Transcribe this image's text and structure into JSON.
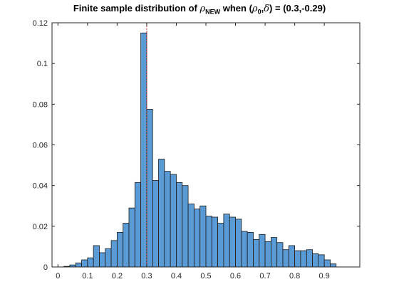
{
  "title": {
    "prefix": "Finite sample distribution of ",
    "rho": "ρ",
    "rho_sub": "NEW",
    "middle": " when (",
    "rho0": "ρ",
    "rho0_sub": "0",
    "comma": ",",
    "delta": "δ",
    "suffix": ") = (0.3,-0.29)"
  },
  "chart_data": {
    "type": "bar",
    "subtype": "histogram",
    "xlim": [
      -0.02,
      1.02
    ],
    "ylim": [
      0,
      0.12
    ],
    "xticks": [
      0,
      0.1,
      0.2,
      0.3,
      0.4,
      0.5,
      0.6,
      0.7,
      0.8,
      0.9
    ],
    "yticks": [
      0,
      0.02,
      0.04,
      0.06,
      0.08,
      0.1,
      0.12
    ],
    "xtick_labels": [
      "0",
      "0.1",
      "0.2",
      "0.3",
      "0.4",
      "0.5",
      "0.6",
      "0.7",
      "0.8",
      "0.9"
    ],
    "ytick_labels": [
      "0",
      "0.02",
      "0.04",
      "0.06",
      "0.08",
      "0.1",
      "0.12"
    ],
    "bin_width": 0.02,
    "bin_starts": [
      0.02,
      0.04,
      0.06,
      0.08,
      0.1,
      0.12,
      0.14,
      0.16,
      0.18,
      0.2,
      0.22,
      0.24,
      0.26,
      0.28,
      0.3,
      0.32,
      0.34,
      0.36,
      0.38,
      0.4,
      0.42,
      0.44,
      0.46,
      0.48,
      0.5,
      0.52,
      0.54,
      0.56,
      0.58,
      0.6,
      0.62,
      0.64,
      0.66,
      0.68,
      0.7,
      0.72,
      0.74,
      0.76,
      0.78,
      0.8,
      0.82,
      0.84,
      0.86,
      0.88,
      0.9,
      0.92
    ],
    "values": [
      0.0003,
      0.001,
      0.002,
      0.0035,
      0.0045,
      0.0105,
      0.007,
      0.009,
      0.013,
      0.017,
      0.0215,
      0.029,
      0.0415,
      0.115,
      0.0775,
      0.0425,
      0.053,
      0.047,
      0.0455,
      0.0415,
      0.04,
      0.031,
      0.0285,
      0.03,
      0.025,
      0.0245,
      0.0215,
      0.026,
      0.0245,
      0.0235,
      0.0175,
      0.017,
      0.0135,
      0.016,
      0.0125,
      0.0145,
      0.012,
      0.0085,
      0.0105,
      0.008,
      0.008,
      0.0085,
      0.0065,
      0.006,
      0.0035,
      0.0015
    ],
    "marker_x": 0.3,
    "bar_color": "#5b9bd5",
    "edge_color": "#1a1a1a",
    "marker_color": "#d62728",
    "grid": false,
    "legend": "none"
  }
}
